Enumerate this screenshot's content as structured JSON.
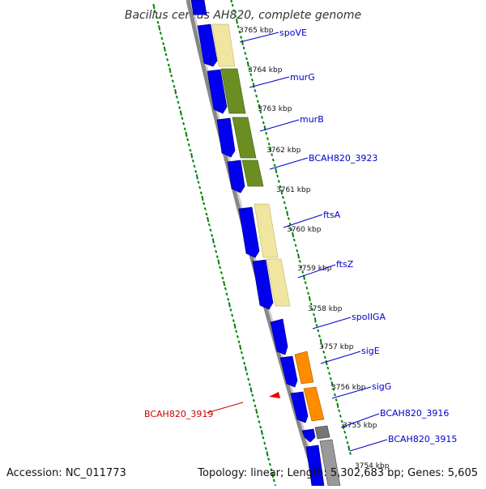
{
  "title": "Bacillus cereus AH820, complete genome",
  "accession": "Accession: NC_011773",
  "topology": "Topology: linear; Length: 5,302,683 bp; Genes: 5,605",
  "kbp_ticks": [
    "3765 kbp",
    "3764 kbp",
    "3763 kbp",
    "3762 kbp",
    "3761 kbp",
    "3760 kbp",
    "3759 kbp",
    "3758 kbp",
    "3757 kbp",
    "3756 kbp",
    "3755 kbp",
    "3754 kbp"
  ],
  "genes": [
    {
      "label": "spoVE",
      "color": "#0000cc"
    },
    {
      "label": "murG",
      "color": "#0000cc"
    },
    {
      "label": "murB",
      "color": "#0000cc"
    },
    {
      "label": "BCAH820_3923",
      "color": "#0000cc"
    },
    {
      "label": "ftsA",
      "color": "#0000cc"
    },
    {
      "label": "ftsZ",
      "color": "#0000cc"
    },
    {
      "label": "spoIIGA",
      "color": "#0000cc"
    },
    {
      "label": "sigE",
      "color": "#0000cc"
    },
    {
      "label": "sigG",
      "color": "#0000cc"
    },
    {
      "label": "BCAH820_3916",
      "color": "#0000cc"
    },
    {
      "label": "BCAH820_3915",
      "color": "#0000cc"
    },
    {
      "label": "BCAH820_3919",
      "color": "#cc0000"
    }
  ],
  "colors": {
    "cds": "#0000ee",
    "cds_stroke": "#000088",
    "beige": "#f0e6a0",
    "olive": "#6b8e23",
    "orange": "#ff8c00",
    "gray": "#777777",
    "ruler": "#008000",
    "red_marker": "#ee0000"
  }
}
